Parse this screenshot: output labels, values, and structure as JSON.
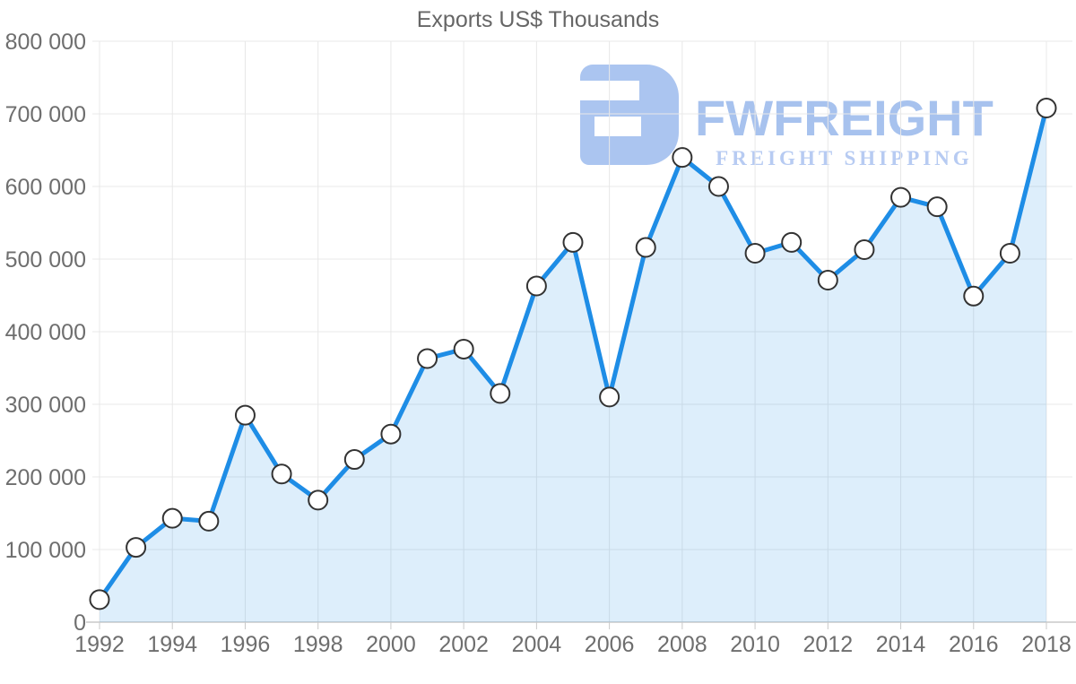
{
  "page": {
    "background": "#ffffff"
  },
  "watermark": {
    "brand": "FWFREIGHT",
    "tagline": "FREIGHT SHIPPING",
    "brand_color": "#a7c2ee",
    "mark_color": "#abc5f0"
  },
  "chart_data": {
    "type": "area",
    "title": "Exports US$ Thousands",
    "series_name": "Exports",
    "x": [
      1992,
      1993,
      1994,
      1995,
      1996,
      1997,
      1998,
      1999,
      2000,
      2001,
      2002,
      2003,
      2004,
      2005,
      2006,
      2007,
      2008,
      2009,
      2010,
      2011,
      2012,
      2013,
      2014,
      2015,
      2016,
      2017,
      2018
    ],
    "values": [
      31000,
      103000,
      143000,
      139000,
      285000,
      204000,
      168000,
      224000,
      259000,
      363000,
      376000,
      315000,
      463000,
      523000,
      310000,
      516000,
      640000,
      600000,
      508000,
      523000,
      471000,
      513000,
      585000,
      572000,
      449000,
      508000,
      708000
    ],
    "ylim": [
      0,
      800000
    ],
    "ytick_step": 100000,
    "ytick_labels": [
      "0",
      "100 000",
      "200 000",
      "300 000",
      "400 000",
      "500 000",
      "600 000",
      "700 000",
      "800 000"
    ],
    "xtick_labels": [
      "1992",
      "1994",
      "1996",
      "1998",
      "2000",
      "2002",
      "2004",
      "2006",
      "2008",
      "2010",
      "2012",
      "2014",
      "2016",
      "2018"
    ],
    "grid": true,
    "legend": false,
    "colors": {
      "line": "#1e8de6",
      "fill_tint": "#ddecf9",
      "marker_fill": "#ffffff",
      "marker_stroke": "#333333",
      "grid": "#e8e8e8",
      "axis": "#c9c9c9",
      "label": "#6e6e6e",
      "title": "#666666"
    }
  }
}
